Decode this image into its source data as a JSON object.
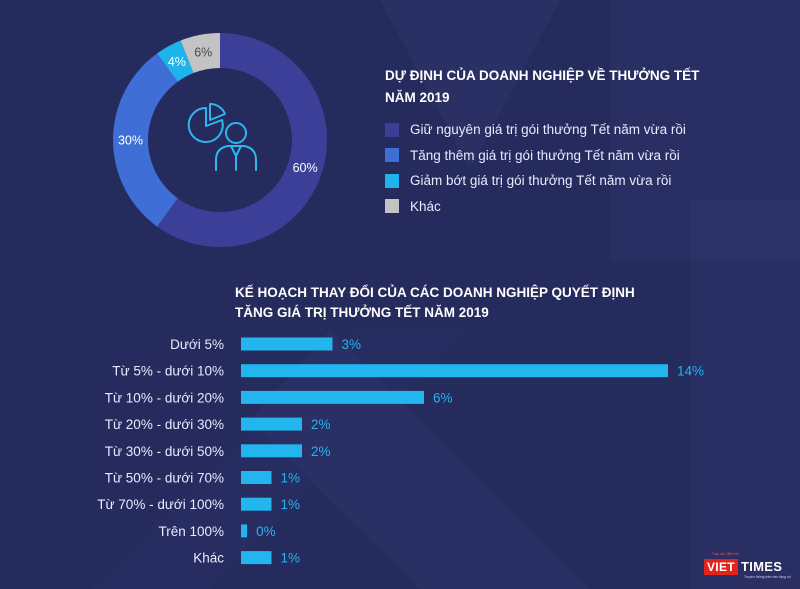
{
  "chart_data": [
    {
      "type": "pie",
      "title": "DỰ ĐỊNH CỦA DOANH NGHIỆP VỀ THƯỞNG TẾT\nNĂM 2019",
      "categories": [
        "Giữ nguyên giá trị gói thưởng Tết năm vừa rồi",
        "Tăng thêm giá trị gói thưởng Tết năm vừa rồi",
        "Giảm bớt giá trị gói thưởng Tết năm vừa rồi",
        "Khác"
      ],
      "values": [
        60,
        30,
        4,
        6
      ],
      "labels": [
        "60%",
        "30%",
        "4%",
        "6%"
      ],
      "colors": [
        "#3c3f98",
        "#3f6fd6",
        "#1fb3ec",
        "#c3c3c3"
      ],
      "legend_position": "right"
    },
    {
      "type": "bar",
      "orientation": "horizontal",
      "title": "KẾ HOẠCH THAY ĐỔI CỦA CÁC DOANH NGHIỆP QUYẾT ĐỊNH\nTĂNG GIÁ TRỊ THƯỞNG TẾT NĂM 2019",
      "categories": [
        "Dưới 5%",
        "Từ 5% - dưới 10%",
        "Từ 10% - dưới 20%",
        "Từ 20% - dưới 30%",
        "Từ 30% - dưới 50%",
        "Từ 50% - dưới 70%",
        "Từ 70% - dưới 100%",
        "Trên 100%",
        "Khác"
      ],
      "values": [
        3,
        14,
        6,
        2,
        2,
        1,
        1,
        0.2,
        1
      ],
      "labels": [
        "3%",
        "14%",
        "6%",
        "2%",
        "2%",
        "1%",
        "1%",
        "0%",
        "1%"
      ],
      "color": "#22b5ee",
      "xlim": [
        0,
        14
      ]
    }
  ],
  "logo": {
    "tagline": "Tạp chí điện tử",
    "name_part1": "VIET",
    "name_part2": "TIMES",
    "slogan": "Truyền thông trên nền tảng số"
  }
}
